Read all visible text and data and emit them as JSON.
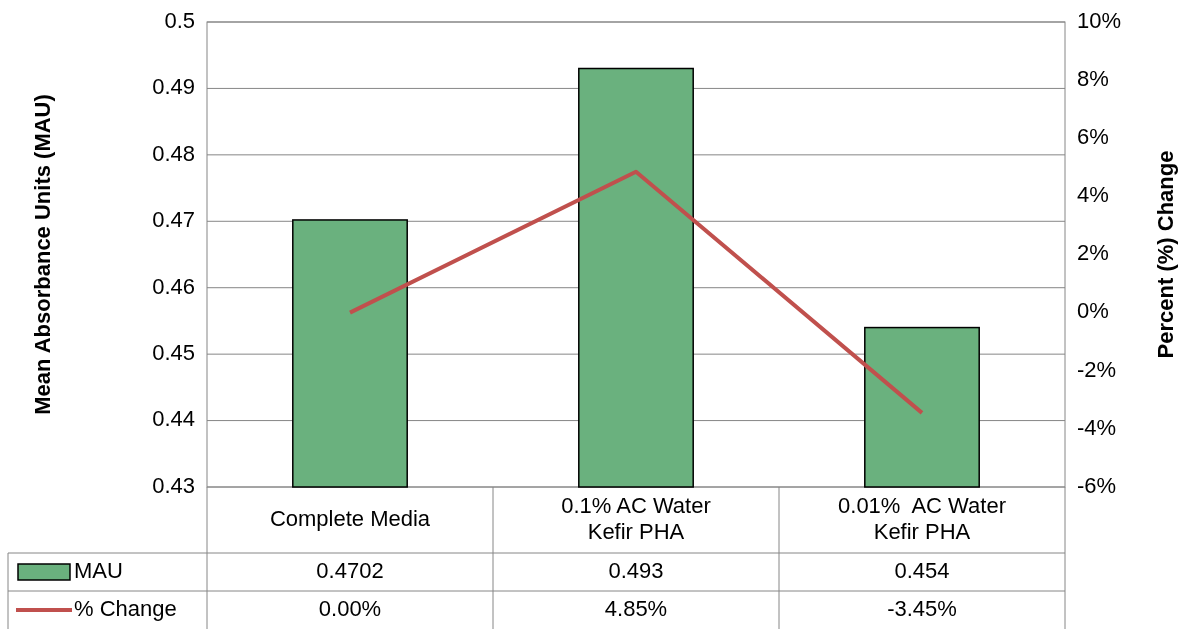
{
  "chart_data": {
    "type": "bar",
    "ylabel": "Mean Absorbance Units (MAU)",
    "y2label": "Percent (%) Change",
    "categories": [
      "Complete Media",
      "0.1% AC Water Kefir PHA",
      "0.01%  AC Water Kefir PHA"
    ],
    "series": [
      {
        "name": "MAU",
        "color": "#6ab17e",
        "values": [
          0.4702,
          0.493,
          0.454
        ],
        "value_labels": [
          "0.4702",
          "0.493",
          "0.454"
        ]
      },
      {
        "name": "% Change",
        "type": "line",
        "axis": "y2",
        "color": "#c0504d",
        "values": [
          0,
          4.85,
          -3.45
        ],
        "value_labels": [
          "0.00%",
          "4.85%",
          "-3.45%"
        ]
      }
    ],
    "ylim": [
      0.43,
      0.5
    ],
    "yticks": [
      0.43,
      0.44,
      0.45,
      0.46,
      0.47,
      0.48,
      0.49,
      0.5
    ],
    "y2lim": [
      -6,
      10
    ],
    "y2ticks": [
      {
        "value": -6,
        "label": "-6%"
      },
      {
        "value": -4,
        "label": "-4%"
      },
      {
        "value": -2,
        "label": "-2%"
      },
      {
        "value": 0,
        "label": "0%"
      },
      {
        "value": 2,
        "label": "2%"
      },
      {
        "value": 4,
        "label": "4%"
      },
      {
        "value": 6,
        "label": "6%"
      },
      {
        "value": 8,
        "label": "8%"
      },
      {
        "value": 10,
        "label": "10%"
      }
    ],
    "grid": "y",
    "legend": "bottom left",
    "marker": "none",
    "line_style": "solid"
  }
}
